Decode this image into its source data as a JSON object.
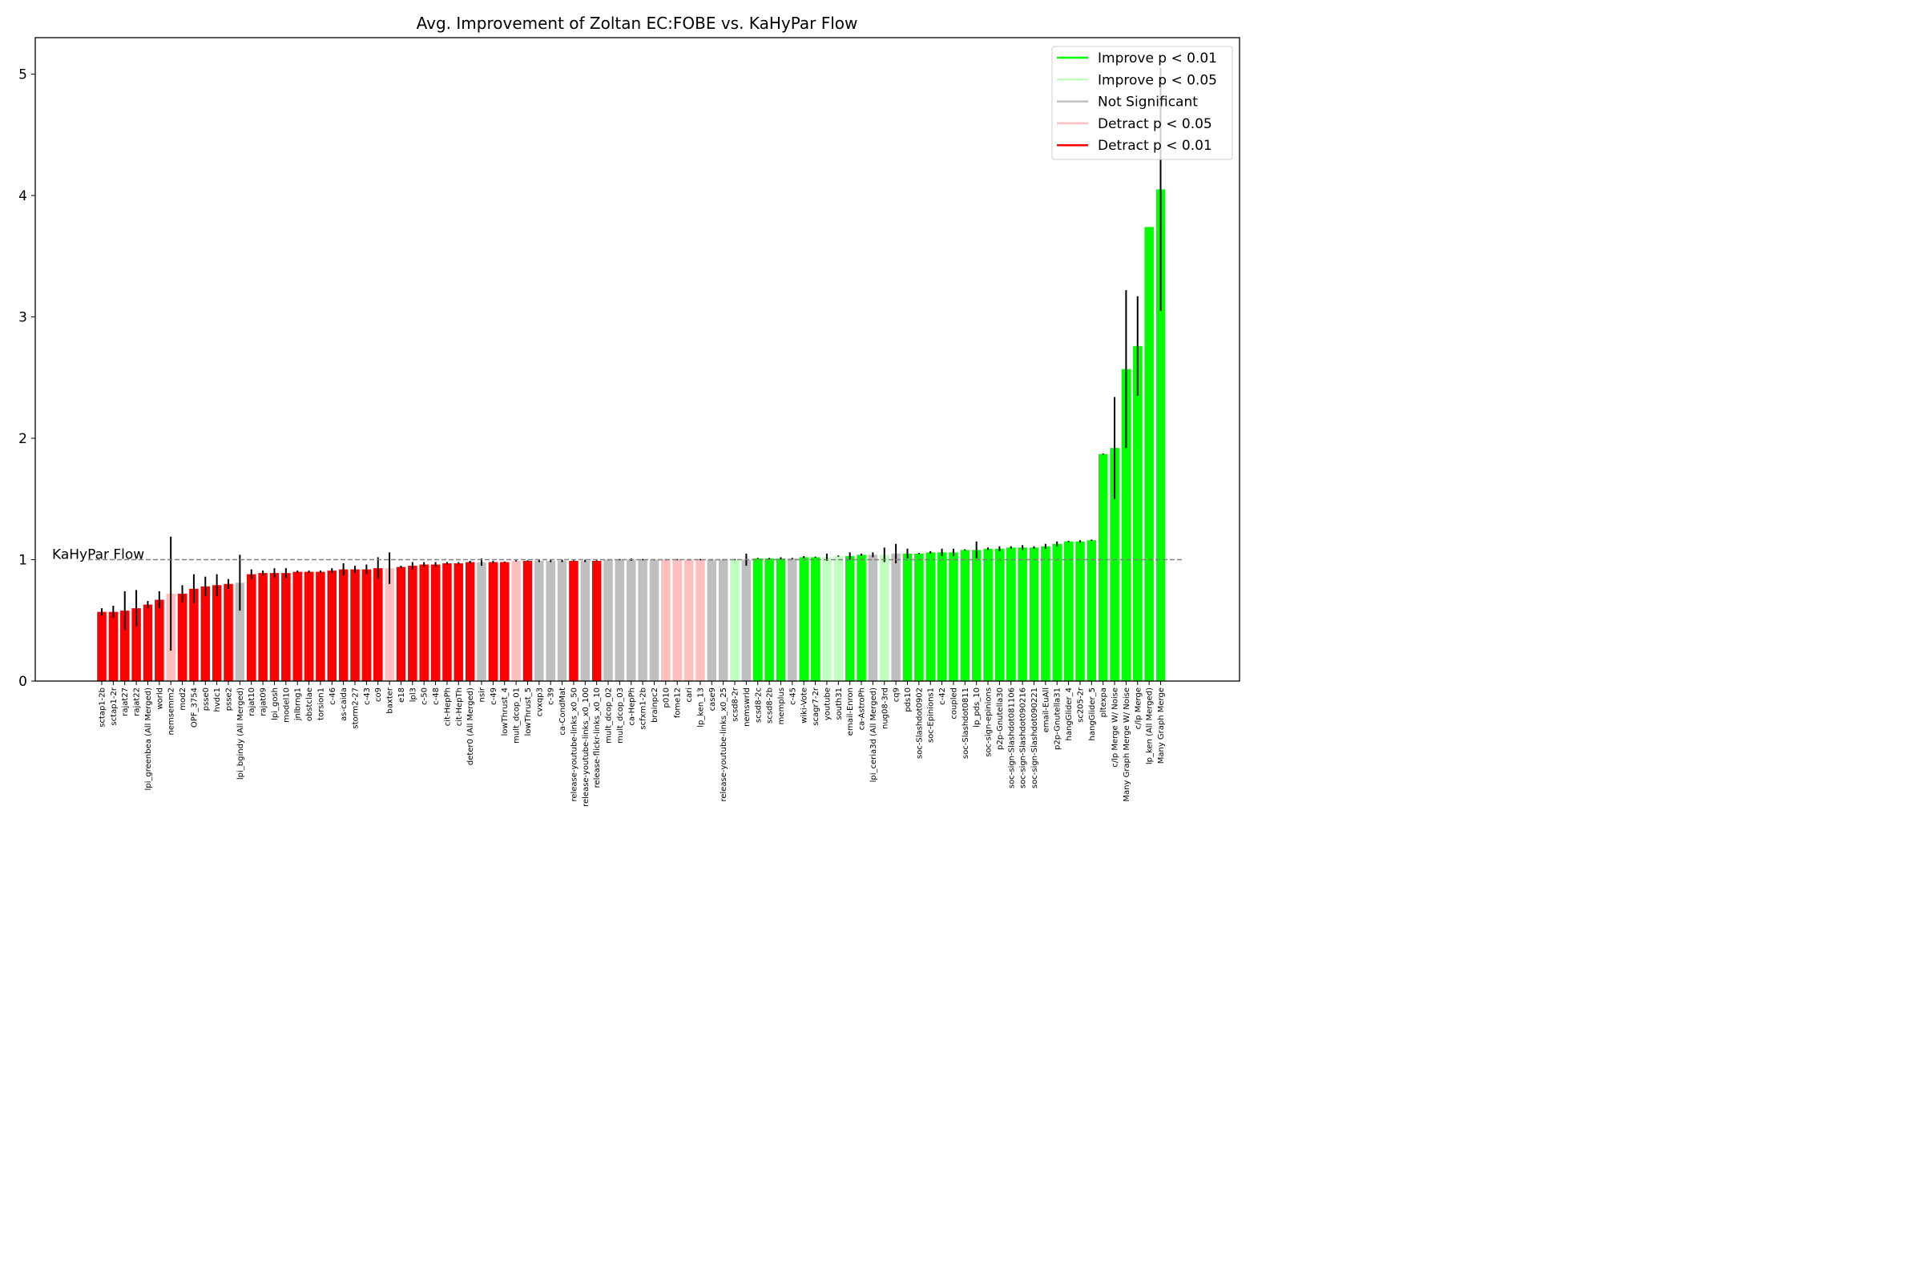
{
  "chart_data": {
    "type": "bar",
    "title": "Avg. Improvement of Zoltan EC:FOBE vs. KaHyPar Flow",
    "xlabel": "",
    "ylabel": "",
    "ylim": [
      0,
      5.3
    ],
    "yticks": [
      0,
      1,
      2,
      3,
      4,
      5
    ],
    "grid": false,
    "legend_position": "top-right",
    "reference_line": {
      "value": 1,
      "label": "KaHyPar Flow",
      "style": "dashed"
    },
    "colors": {
      "improve_p01": "#00ff00",
      "improve_p05": "#bfffbf",
      "not_significant": "#bfbfbf",
      "detract_p05": "#ffbfbf",
      "detract_p01": "#ff0000"
    },
    "legend": [
      {
        "label": "Improve p < 0.01",
        "color": "#00ff00"
      },
      {
        "label": "Improve p < 0.05",
        "color": "#bfffbf"
      },
      {
        "label": "Not Significant",
        "color": "#bfbfbf"
      },
      {
        "label": "Detract p < 0.05",
        "color": "#ffbfbf"
      },
      {
        "label": "Detract p < 0.01",
        "color": "#ff0000"
      }
    ],
    "bars": [
      {
        "label": "sctap1-2b",
        "value": 0.57,
        "err": 0.03,
        "sig": "d01"
      },
      {
        "label": "sctap1-2r",
        "value": 0.57,
        "err": 0.05,
        "sig": "d01"
      },
      {
        "label": "rajat27",
        "value": 0.58,
        "err": 0.16,
        "sig": "d01"
      },
      {
        "label": "rajat22",
        "value": 0.6,
        "err": 0.15,
        "sig": "d01"
      },
      {
        "label": "lpi_greenbea (All Merged)",
        "value": 0.63,
        "err": 0.03,
        "sig": "d01"
      },
      {
        "label": "world",
        "value": 0.67,
        "err": 0.07,
        "sig": "d01"
      },
      {
        "label": "nemsemm2",
        "value": 0.72,
        "err": 0.47,
        "sig": "d05"
      },
      {
        "label": "mod2",
        "value": 0.72,
        "err": 0.07,
        "sig": "d01"
      },
      {
        "label": "OPF_3754",
        "value": 0.76,
        "err": 0.12,
        "sig": "d01"
      },
      {
        "label": "psse0",
        "value": 0.78,
        "err": 0.08,
        "sig": "d01"
      },
      {
        "label": "hvdc1",
        "value": 0.79,
        "err": 0.09,
        "sig": "d01"
      },
      {
        "label": "psse2",
        "value": 0.8,
        "err": 0.04,
        "sig": "d01"
      },
      {
        "label": "lpi_bgindy (All Merged)",
        "value": 0.81,
        "err": 0.23,
        "sig": "ns"
      },
      {
        "label": "rajat10",
        "value": 0.88,
        "err": 0.04,
        "sig": "d01"
      },
      {
        "label": "rajat09",
        "value": 0.89,
        "err": 0.02,
        "sig": "d01"
      },
      {
        "label": "lpi_gosh",
        "value": 0.89,
        "err": 0.04,
        "sig": "d01"
      },
      {
        "label": "model10",
        "value": 0.89,
        "err": 0.04,
        "sig": "d01"
      },
      {
        "label": "jnlbrng1",
        "value": 0.9,
        "err": 0.01,
        "sig": "d01"
      },
      {
        "label": "obstclae",
        "value": 0.9,
        "err": 0.01,
        "sig": "d01"
      },
      {
        "label": "torsion1",
        "value": 0.9,
        "err": 0.01,
        "sig": "d01"
      },
      {
        "label": "c-46",
        "value": 0.91,
        "err": 0.02,
        "sig": "d01"
      },
      {
        "label": "as-caida",
        "value": 0.92,
        "err": 0.05,
        "sig": "d01"
      },
      {
        "label": "storm2-27",
        "value": 0.92,
        "err": 0.03,
        "sig": "d01"
      },
      {
        "label": "c-43",
        "value": 0.92,
        "err": 0.04,
        "sig": "d01"
      },
      {
        "label": "co9",
        "value": 0.93,
        "err": 0.09,
        "sig": "d01"
      },
      {
        "label": "baxter",
        "value": 0.93,
        "err": 0.13,
        "sig": "d05"
      },
      {
        "label": "e18",
        "value": 0.94,
        "err": 0.01,
        "sig": "d01"
      },
      {
        "label": "lpl3",
        "value": 0.95,
        "err": 0.03,
        "sig": "d01"
      },
      {
        "label": "c-50",
        "value": 0.96,
        "err": 0.02,
        "sig": "d01"
      },
      {
        "label": "c-48",
        "value": 0.96,
        "err": 0.02,
        "sig": "d01"
      },
      {
        "label": "cit-HepPh",
        "value": 0.97,
        "err": 0.01,
        "sig": "d01"
      },
      {
        "label": "cit-HepTh",
        "value": 0.97,
        "err": 0.01,
        "sig": "d01"
      },
      {
        "label": "deter0 (All Merged)",
        "value": 0.98,
        "err": 0.01,
        "sig": "d01"
      },
      {
        "label": "nsir",
        "value": 0.98,
        "err": 0.03,
        "sig": "ns"
      },
      {
        "label": "c-49",
        "value": 0.98,
        "err": 0.01,
        "sig": "d01"
      },
      {
        "label": "lowThrust_4",
        "value": 0.98,
        "err": 0.005,
        "sig": "d01"
      },
      {
        "label": "mult_dcop_01",
        "value": 0.99,
        "err": 0.005,
        "sig": "d05"
      },
      {
        "label": "lowThrust_5",
        "value": 0.99,
        "err": 0.005,
        "sig": "d01"
      },
      {
        "label": "cvxqp3",
        "value": 0.99,
        "err": 0.01,
        "sig": "ns"
      },
      {
        "label": "c-39",
        "value": 0.99,
        "err": 0.01,
        "sig": "ns"
      },
      {
        "label": "ca-CondMat",
        "value": 0.99,
        "err": 0.01,
        "sig": "ns"
      },
      {
        "label": "release-youtube-links_x0_50",
        "value": 0.99,
        "err": 0.005,
        "sig": "d01"
      },
      {
        "label": "release-youtube-links_x0_100",
        "value": 0.99,
        "err": 0.01,
        "sig": "ns"
      },
      {
        "label": "release-flickr-links_x0_10",
        "value": 0.99,
        "err": 0.005,
        "sig": "d01"
      },
      {
        "label": "mult_dcop_02",
        "value": 1.0,
        "err": 0.005,
        "sig": "ns"
      },
      {
        "label": "mult_dcop_03",
        "value": 1.0,
        "err": 0.005,
        "sig": "ns"
      },
      {
        "label": "ca-HepPh",
        "value": 1.0,
        "err": 0.01,
        "sig": "ns"
      },
      {
        "label": "scfxm1-2b",
        "value": 1.0,
        "err": 0.005,
        "sig": "ns"
      },
      {
        "label": "brainpc2",
        "value": 1.0,
        "err": 0.005,
        "sig": "ns"
      },
      {
        "label": "p010",
        "value": 1.0,
        "err": 0.005,
        "sig": "d05"
      },
      {
        "label": "fome12",
        "value": 1.0,
        "err": 0.005,
        "sig": "d05"
      },
      {
        "label": "cari",
        "value": 1.0,
        "err": 0.005,
        "sig": "d05"
      },
      {
        "label": "lp_ken_13",
        "value": 1.0,
        "err": 0.005,
        "sig": "d05"
      },
      {
        "label": "case9",
        "value": 1.0,
        "err": 0.005,
        "sig": "ns"
      },
      {
        "label": "release-youtube-links_x0_25",
        "value": 1.0,
        "err": 0.005,
        "sig": "ns"
      },
      {
        "label": "scsd8-2r",
        "value": 1.0,
        "err": 0.005,
        "sig": "i05"
      },
      {
        "label": "nemswrld",
        "value": 1.0,
        "err": 0.05,
        "sig": "ns"
      },
      {
        "label": "scsd8-2c",
        "value": 1.01,
        "err": 0.005,
        "sig": "i01"
      },
      {
        "label": "scsd8-2b",
        "value": 1.01,
        "err": 0.005,
        "sig": "i01"
      },
      {
        "label": "memplus",
        "value": 1.01,
        "err": 0.01,
        "sig": "i01"
      },
      {
        "label": "c-45",
        "value": 1.01,
        "err": 0.005,
        "sig": "ns"
      },
      {
        "label": "wiki-Vote",
        "value": 1.02,
        "err": 0.01,
        "sig": "i01"
      },
      {
        "label": "scagr7-2r",
        "value": 1.02,
        "err": 0.005,
        "sig": "i01"
      },
      {
        "label": "youtube",
        "value": 1.02,
        "err": 0.03,
        "sig": "i05"
      },
      {
        "label": "south31",
        "value": 1.03,
        "err": 0.005,
        "sig": "i05"
      },
      {
        "label": "email-Enron",
        "value": 1.03,
        "err": 0.03,
        "sig": "i01"
      },
      {
        "label": "ca-AstroPh",
        "value": 1.04,
        "err": 0.01,
        "sig": "i01"
      },
      {
        "label": "lpi_ceria3d (All Merged)",
        "value": 1.04,
        "err": 0.02,
        "sig": "ns"
      },
      {
        "label": "nug08-3rd",
        "value": 1.04,
        "err": 0.06,
        "sig": "i05"
      },
      {
        "label": "cq9",
        "value": 1.05,
        "err": 0.08,
        "sig": "ns"
      },
      {
        "label": "pds10",
        "value": 1.05,
        "err": 0.04,
        "sig": "i01"
      },
      {
        "label": "soc-Slashdot0902",
        "value": 1.05,
        "err": 0.005,
        "sig": "i01"
      },
      {
        "label": "soc-Epinions1",
        "value": 1.06,
        "err": 0.01,
        "sig": "i01"
      },
      {
        "label": "c-42",
        "value": 1.06,
        "err": 0.03,
        "sig": "i01"
      },
      {
        "label": "coupled",
        "value": 1.06,
        "err": 0.03,
        "sig": "i01"
      },
      {
        "label": "soc-Slashdot0811",
        "value": 1.08,
        "err": 0.005,
        "sig": "i01"
      },
      {
        "label": "lp_pds_10",
        "value": 1.08,
        "err": 0.07,
        "sig": "i01"
      },
      {
        "label": "soc-sign-epinions",
        "value": 1.09,
        "err": 0.01,
        "sig": "i01"
      },
      {
        "label": "p2p-Gnutella30",
        "value": 1.09,
        "err": 0.02,
        "sig": "i01"
      },
      {
        "label": "soc-sign-Slashdot081106",
        "value": 1.1,
        "err": 0.01,
        "sig": "i01"
      },
      {
        "label": "soc-sign-Slashdot090216",
        "value": 1.1,
        "err": 0.02,
        "sig": "i01"
      },
      {
        "label": "soc-sign-Slashdot090221",
        "value": 1.1,
        "err": 0.01,
        "sig": "i01"
      },
      {
        "label": "email-EuAll",
        "value": 1.11,
        "err": 0.02,
        "sig": "i01"
      },
      {
        "label": "p2p-Gnutella31",
        "value": 1.13,
        "err": 0.02,
        "sig": "i01"
      },
      {
        "label": "hangGlider_4",
        "value": 1.15,
        "err": 0.005,
        "sig": "i01"
      },
      {
        "label": "sc205-2r",
        "value": 1.15,
        "err": 0.01,
        "sig": "i01"
      },
      {
        "label": "hangGlider_5",
        "value": 1.16,
        "err": 0.005,
        "sig": "i01"
      },
      {
        "label": "pltexpa",
        "value": 1.87,
        "err": 0.005,
        "sig": "i01"
      },
      {
        "label": "c/lp Merge W/ Noise",
        "value": 1.92,
        "err": 0.42,
        "sig": "i01"
      },
      {
        "label": "Many Graph Merge W/ Noise",
        "value": 2.57,
        "err": 0.65,
        "sig": "i01"
      },
      {
        "label": "c/lp Merge",
        "value": 2.76,
        "err": 0.41,
        "sig": "i01"
      },
      {
        "label": "lp_ken (All Merged)",
        "value": 3.74,
        "err": 0,
        "sig": "i01"
      },
      {
        "label": "Many Graph Merge",
        "value": 4.05,
        "err": 1.0,
        "sig": "i01"
      }
    ]
  }
}
